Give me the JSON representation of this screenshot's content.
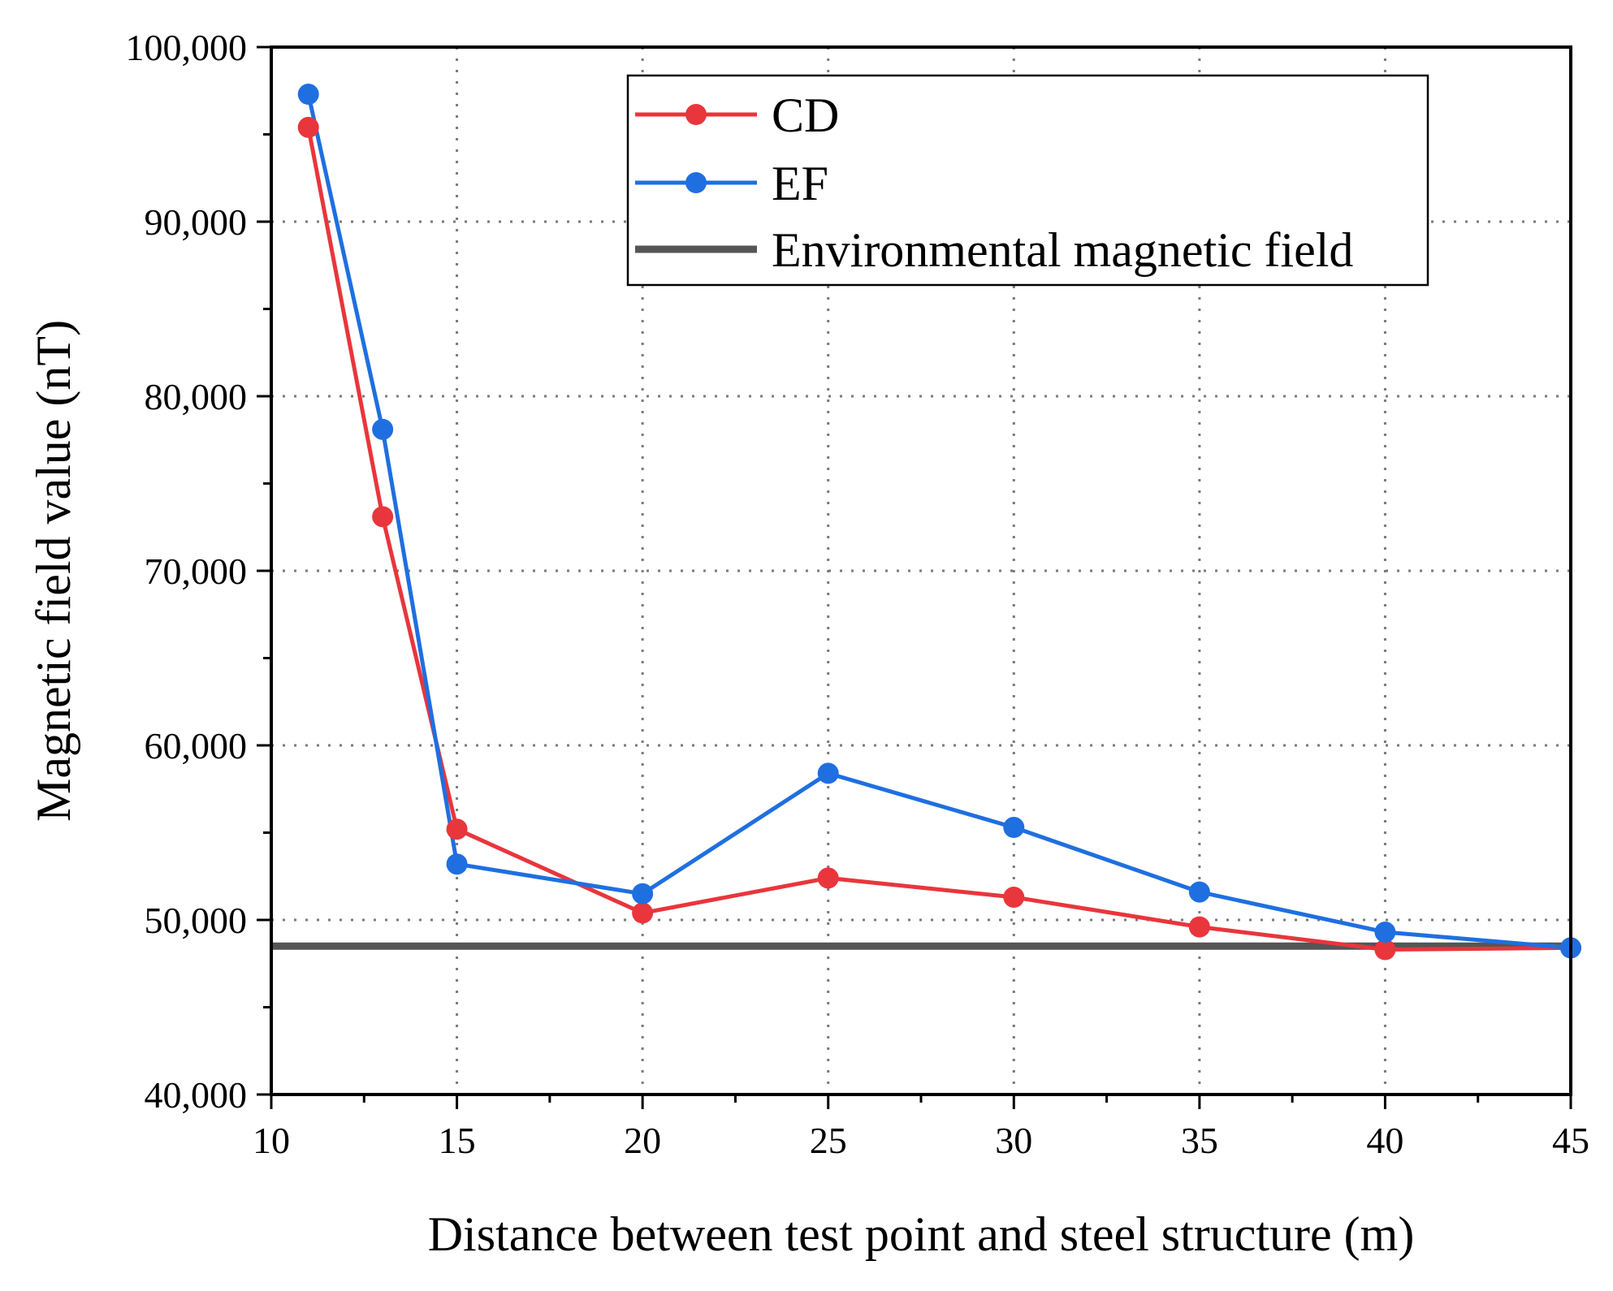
{
  "chart_data": {
    "type": "line",
    "title": "",
    "xlabel": "Distance between test point and steel structure (m)",
    "ylabel": "Magnetic field value (nT)",
    "xlim": [
      10,
      45
    ],
    "ylim": [
      40000,
      100000
    ],
    "x_ticks": [
      10,
      15,
      20,
      25,
      30,
      35,
      40,
      45
    ],
    "x_tick_labels": [
      "10",
      "15",
      "20",
      "25",
      "30",
      "35",
      "40",
      "45"
    ],
    "y_ticks": [
      40000,
      50000,
      60000,
      70000,
      80000,
      90000,
      100000
    ],
    "y_tick_labels": [
      "40,000",
      "50,000",
      "60,000",
      "70,000",
      "80,000",
      "90,000",
      "100,000"
    ],
    "grid": true,
    "legend_position": "top-right",
    "series": [
      {
        "name": "CD",
        "color": "#e8363c",
        "marker": "circle",
        "x": [
          11,
          13,
          15,
          20,
          25,
          30,
          35,
          40,
          45
        ],
        "y": [
          95400,
          73100,
          55200,
          50400,
          52400,
          51300,
          49600,
          48300,
          48400
        ]
      },
      {
        "name": "EF",
        "color": "#1f6fe0",
        "marker": "circle",
        "x": [
          11,
          13,
          15,
          20,
          25,
          30,
          35,
          40,
          45
        ],
        "y": [
          97300,
          78100,
          53200,
          51500,
          58400,
          55300,
          51600,
          49300,
          48400
        ]
      },
      {
        "name": "Environmental magnetic field",
        "color": "#555555",
        "marker": "none",
        "x": [
          10,
          45
        ],
        "y": [
          48500,
          48500
        ]
      }
    ]
  }
}
